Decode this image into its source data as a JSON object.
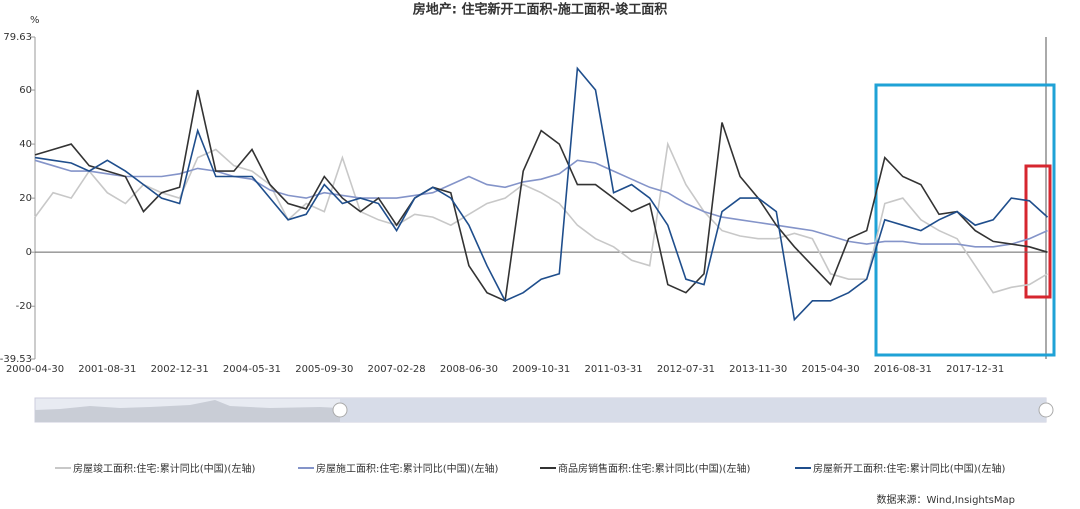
{
  "chart_data": {
    "type": "line",
    "title": "房地产: 住宅新开工面积-施工面积-竣工面积",
    "y_label": "%",
    "source": "数据来源：Wind,InsightsMap",
    "categories": [
      "2000-04-30",
      null,
      null,
      null,
      "2001-08-31",
      null,
      null,
      null,
      "2002-12-31",
      null,
      null,
      null,
      "2004-05-31",
      null,
      null,
      null,
      "2005-09-30",
      null,
      null,
      null,
      "2007-02-28",
      null,
      null,
      null,
      "2008-06-30",
      null,
      null,
      null,
      "2009-10-31",
      null,
      null,
      null,
      "2011-03-31",
      null,
      null,
      null,
      "2012-07-31",
      null,
      null,
      null,
      "2013-11-30",
      null,
      null,
      null,
      "2015-04-30",
      null,
      null,
      null,
      "2016-08-31",
      null,
      null,
      null,
      "2017-12-31",
      null,
      null,
      null,
      null
    ],
    "ylim": [
      -39.53,
      79.63
    ],
    "yticks": [
      -39.53,
      -20,
      0,
      20,
      40,
      60,
      79.63
    ],
    "series": [
      {
        "name": "房屋竣工面积:住宅:累计同比(中国)(左轴)",
        "color": "#c8c8c8",
        "values": [
          13,
          22,
          20,
          30,
          22,
          18,
          25,
          22,
          20,
          35,
          38,
          32,
          30,
          25,
          12,
          18,
          15,
          35,
          15,
          12,
          10,
          14,
          13,
          10,
          14,
          18,
          20,
          25,
          22,
          18,
          10,
          5,
          2,
          -3,
          -5,
          40,
          25,
          15,
          8,
          6,
          5,
          5,
          7,
          5,
          -8,
          -10,
          -10,
          18,
          20,
          12,
          8,
          5,
          -5,
          -15,
          -13,
          -12,
          -8
        ]
      },
      {
        "name": "房屋施工面积:住宅:累计同比(中国)(左轴)",
        "color": "#8494c9",
        "values": [
          34,
          32,
          30,
          30,
          29,
          28,
          28,
          28,
          29,
          31,
          30,
          28,
          27,
          23,
          21,
          20,
          22,
          21,
          20,
          20,
          20,
          21,
          22,
          25,
          28,
          25,
          24,
          26,
          27,
          29,
          34,
          33,
          30,
          27,
          24,
          22,
          18,
          15,
          13,
          12,
          11,
          10,
          9,
          8,
          6,
          4,
          3,
          4,
          4,
          3,
          3,
          3,
          2,
          2,
          3,
          5,
          8
        ]
      },
      {
        "name": "商品房销售面积:住宅:累计同比(中国)(左轴)",
        "color": "#333333",
        "values": [
          36,
          38,
          40,
          32,
          30,
          28,
          15,
          22,
          24,
          60,
          30,
          30,
          38,
          25,
          18,
          16,
          28,
          20,
          15,
          20,
          10,
          20,
          24,
          22,
          -5,
          -15,
          -18,
          30,
          45,
          40,
          25,
          25,
          20,
          15,
          18,
          -12,
          -15,
          -8,
          48,
          28,
          20,
          10,
          2,
          -5,
          -12,
          5,
          8,
          35,
          28,
          25,
          14,
          15,
          8,
          4,
          3,
          2,
          0
        ]
      },
      {
        "name": "房屋新开工面积:住宅:累计同比(中国)(左轴)",
        "color": "#1f4e8c",
        "values": [
          35,
          34,
          33,
          30,
          34,
          30,
          25,
          20,
          18,
          45,
          28,
          28,
          28,
          20,
          12,
          14,
          25,
          18,
          20,
          18,
          8,
          20,
          24,
          20,
          10,
          -5,
          -18,
          -15,
          -10,
          -8,
          68,
          60,
          22,
          25,
          20,
          10,
          -10,
          -12,
          15,
          20,
          20,
          15,
          -25,
          -18,
          -18,
          -15,
          -10,
          12,
          10,
          8,
          12,
          15,
          10,
          12,
          20,
          19,
          13
        ]
      }
    ]
  }
}
